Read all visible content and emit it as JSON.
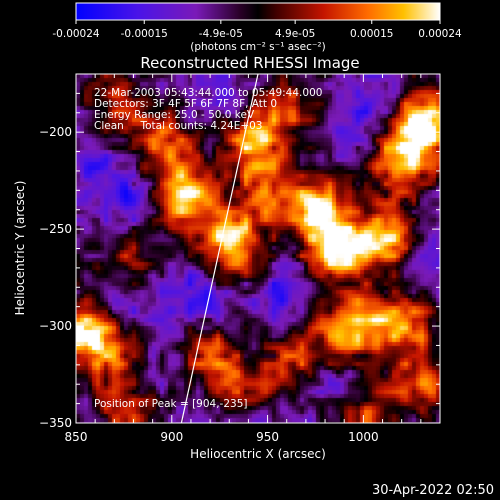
{
  "chart_data": {
    "type": "heatmap",
    "title": "Reconstructed RHESSI Image",
    "xlabel": "Heliocentric X (arcsec)",
    "ylabel": "Heliocentric Y (arcsec)",
    "xlim": [
      850,
      1040
    ],
    "ylim": [
      -350,
      -170
    ],
    "x_ticks": [
      "850",
      "900",
      "950",
      "1000"
    ],
    "y_ticks": [
      "-200",
      "-250",
      "-300",
      "-350"
    ],
    "colorbar": {
      "label": "(photons cm⁻² s⁻¹ asec⁻²)",
      "range": [
        -0.00024,
        0.00024
      ],
      "ticks": [
        "-0.00024",
        "-0.00015",
        "-4.9e-05",
        "4.9e-05",
        "0.00015",
        "0.00024"
      ]
    },
    "annotations": [
      "22-Mar-2003 05:43:44.000 to 05:49:44.000",
      "Detectors: 3F 4F 5F 6F 7F 8F, Att 0",
      "Energy Range: 25.0 - 50.0 keV",
      "Clean     Total counts: 4.24E+03"
    ],
    "peak_label": "Position of Peak = [904,-235]",
    "peak": [
      904,
      -235
    ],
    "limb_line": [
      [
        905,
        -350
      ],
      [
        945,
        -170
      ]
    ],
    "bright_sources": [
      {
        "x": 1032,
        "y": -195,
        "v": 1.0
      },
      {
        "x": 1020,
        "y": -215,
        "v": 0.8
      },
      {
        "x": 1012,
        "y": -255,
        "v": 0.85
      },
      {
        "x": 985,
        "y": -260,
        "v": 1.0
      },
      {
        "x": 975,
        "y": -238,
        "v": 0.75
      },
      {
        "x": 995,
        "y": -300,
        "v": 0.9
      },
      {
        "x": 1022,
        "y": -300,
        "v": 0.7
      },
      {
        "x": 1030,
        "y": -330,
        "v": 0.6
      },
      {
        "x": 932,
        "y": -258,
        "v": 0.95
      },
      {
        "x": 942,
        "y": -205,
        "v": 0.75
      },
      {
        "x": 950,
        "y": -230,
        "v": 0.55
      },
      {
        "x": 906,
        "y": -232,
        "v": 0.95
      },
      {
        "x": 895,
        "y": -205,
        "v": 0.6
      },
      {
        "x": 855,
        "y": -300,
        "v": 0.85
      },
      {
        "x": 865,
        "y": -315,
        "v": 0.55
      },
      {
        "x": 920,
        "y": -315,
        "v": 0.6
      },
      {
        "x": 940,
        "y": -335,
        "v": 0.55
      },
      {
        "x": 965,
        "y": -315,
        "v": 0.5
      },
      {
        "x": 875,
        "y": -265,
        "v": 0.45
      },
      {
        "x": 870,
        "y": -185,
        "v": 0.5
      },
      {
        "x": 960,
        "y": -185,
        "v": 0.55
      },
      {
        "x": 1000,
        "y": -345,
        "v": 0.6
      },
      {
        "x": 875,
        "y": -345,
        "v": 0.5
      }
    ],
    "dark_sources": [
      {
        "x": 880,
        "y": -235,
        "v": 0.8
      },
      {
        "x": 870,
        "y": -290,
        "v": 0.9
      },
      {
        "x": 960,
        "y": -280,
        "v": 0.7
      },
      {
        "x": 1000,
        "y": -190,
        "v": 0.6
      },
      {
        "x": 990,
        "y": -330,
        "v": 0.5
      },
      {
        "x": 915,
        "y": -285,
        "v": 0.6
      },
      {
        "x": 858,
        "y": -215,
        "v": 0.5
      },
      {
        "x": 1035,
        "y": -270,
        "v": 0.4
      },
      {
        "x": 930,
        "y": -185,
        "v": 0.45
      },
      {
        "x": 948,
        "y": -345,
        "v": 0.45
      }
    ]
  },
  "footer": {
    "timestamp": "30-Apr-2022 02:50"
  }
}
